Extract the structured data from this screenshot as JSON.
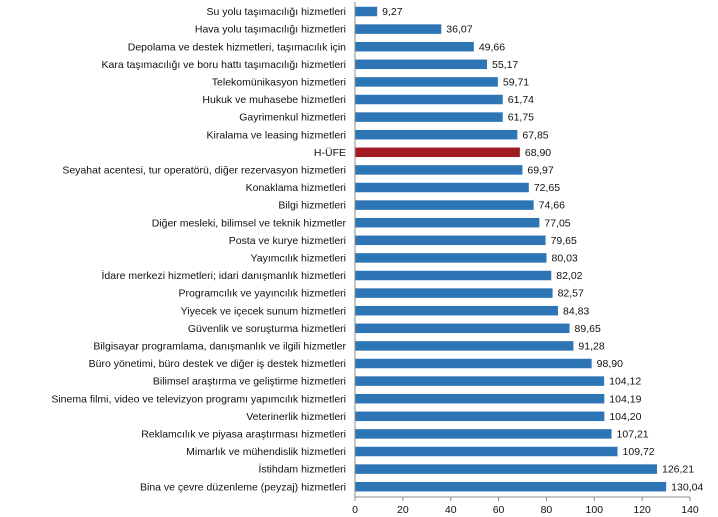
{
  "chart_data": {
    "type": "bar",
    "orientation": "horizontal",
    "title": "",
    "xlabel": "",
    "ylabel": "",
    "xlim": [
      0,
      140
    ],
    "x_ticks": [
      0,
      20,
      40,
      60,
      80,
      100,
      120,
      140
    ],
    "grid": false,
    "legend": "none",
    "colors": {
      "default": "#2e75b6",
      "highlight": "#a01c20"
    },
    "highlight_category": "H-ÜFE",
    "categories": [
      "Su yolu taşımacılığı hizmetleri",
      "Hava yolu taşımacılığı hizmetleri",
      "Depolama ve destek hizmetleri, taşımacılık için",
      "Kara taşımacılığı ve boru hattı taşımacılığı hizmetleri",
      "Telekomünikasyon hizmetleri",
      "Hukuk ve muhasebe hizmetleri",
      "Gayrimenkul hizmetleri",
      "Kiralama ve leasing hizmetleri",
      "H-ÜFE",
      "Seyahat acentesi, tur operatörü, diğer rezervasyon hizmetleri",
      "Konaklama hizmetleri",
      "Bilgi hizmetleri",
      "Diğer mesleki, bilimsel ve teknik hizmetler",
      "Posta ve kurye hizmetleri",
      "Yayımcılık hizmetleri",
      "İdare merkezi hizmetleri; idari danışmanlık hizmetleri",
      "Programcılık ve yayıncılık hizmetleri",
      "Yiyecek ve içecek sunum hizmetleri",
      "Güvenlik ve soruşturma hizmetleri",
      "Bilgisayar programlama, danışmanlık ve ilgili hizmetler",
      "Büro yönetimi, büro destek ve diğer iş destek hizmetleri",
      "Bilimsel araştırma ve geliştirme hizmetleri",
      "Sinema filmi, video ve televizyon programı yapımcılık hizmetleri",
      "Veterinerlik hizmetleri",
      "Reklamcılık ve piyasa araştırması hizmetleri",
      "Mimarlık ve mühendislik hizmetleri",
      "İstihdam hizmetleri",
      "Bina ve çevre düzenleme (peyzaj) hizmetleri"
    ],
    "values": [
      9.27,
      36.07,
      49.66,
      55.17,
      59.71,
      61.74,
      61.75,
      67.85,
      68.9,
      69.97,
      72.65,
      74.66,
      77.05,
      79.65,
      80.03,
      82.02,
      82.57,
      84.83,
      89.65,
      91.28,
      98.9,
      104.12,
      104.19,
      104.2,
      107.21,
      109.72,
      126.21,
      130.04
    ],
    "value_labels": [
      "9,27",
      "36,07",
      "49,66",
      "55,17",
      "59,71",
      "61,74",
      "61,75",
      "67,85",
      "68,90",
      "69,97",
      "72,65",
      "74,66",
      "77,05",
      "79,65",
      "80,03",
      "82,02",
      "82,57",
      "84,83",
      "89,65",
      "91,28",
      "98,90",
      "104,12",
      "104,19",
      "104,20",
      "107,21",
      "109,72",
      "126,21",
      "130,04"
    ]
  }
}
